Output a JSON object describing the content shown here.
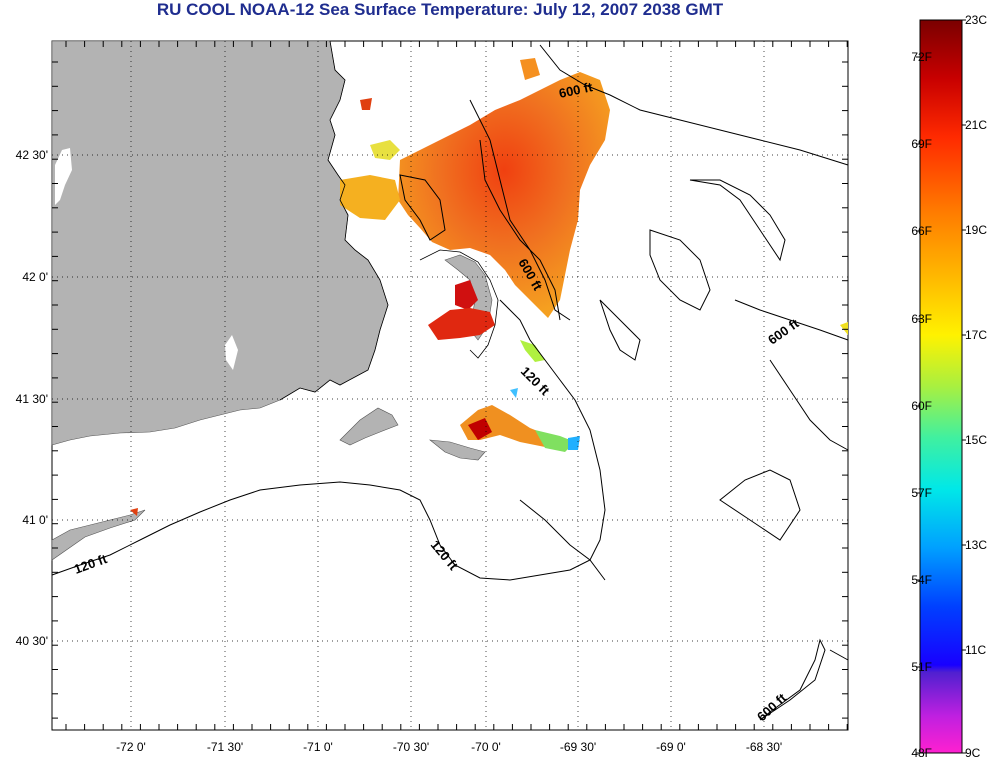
{
  "title": "RU COOL  NOAA-12  Sea Surface Temperature:  July 12, 2007 2038 GMT",
  "map": {
    "lat_ticks": [
      "42 30'",
      "42 0'",
      "41 30'",
      "41 0'",
      "40 30'"
    ],
    "lon_ticks": [
      "-72 0'",
      "-71 30'",
      "-71 0'",
      "-70 30'",
      "-70 0'",
      "-69 30'",
      "-69 0'",
      "-68 30'"
    ],
    "contour_labels": [
      "600 ft",
      "600 ft",
      "600 ft",
      "600 ft",
      "120 ft",
      "120 ft",
      "120 ft"
    ],
    "land_color": "#b3b3b3"
  },
  "colorbar": {
    "fahrenheit": [
      "72F",
      "69F",
      "66F",
      "63F",
      "60F",
      "57F",
      "54F",
      "51F",
      "48F"
    ],
    "celsius": [
      "23C",
      "21C",
      "19C",
      "17C",
      "15C",
      "13C",
      "11C",
      "9C"
    ]
  }
}
